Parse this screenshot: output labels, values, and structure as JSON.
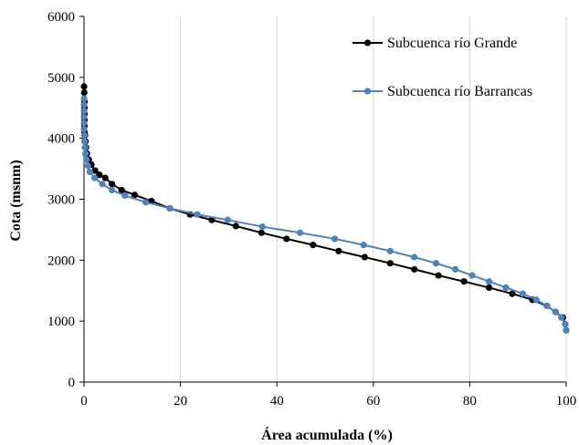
{
  "chart_data": {
    "type": "line",
    "xlabel": "Área acumulada  (%)",
    "ylabel": "Cota (msnm)",
    "xlim": [
      0,
      100
    ],
    "ylim": [
      0,
      6000
    ],
    "x_ticks": [
      "0",
      "20",
      "40",
      "60",
      "80",
      "100"
    ],
    "y_ticks": [
      "0",
      "1000",
      "2000",
      "3000",
      "4000",
      "5000",
      "6000"
    ],
    "grid": "vertical",
    "legend_position": "top-right",
    "series": [
      {
        "name": "Subcuenca río Grande",
        "color": "#000000",
        "points": [
          [
            0.0,
            4850
          ],
          [
            0.05,
            4750
          ],
          [
            0.1,
            4600
          ],
          [
            0.1,
            4500
          ],
          [
            0.1,
            4400
          ],
          [
            0.1,
            4300
          ],
          [
            0.1,
            4200
          ],
          [
            0.1,
            4100
          ],
          [
            0.2,
            4050
          ],
          [
            0.3,
            3950
          ],
          [
            0.4,
            3850
          ],
          [
            0.6,
            3750
          ],
          [
            1.0,
            3650
          ],
          [
            1.5,
            3570
          ],
          [
            2.3,
            3470
          ],
          [
            3.2,
            3400
          ],
          [
            4.4,
            3350
          ],
          [
            5.8,
            3250
          ],
          [
            7.8,
            3150
          ],
          [
            10.5,
            3070
          ],
          [
            14.0,
            2970
          ],
          [
            17.8,
            2850
          ],
          [
            22.0,
            2750
          ],
          [
            26.5,
            2660
          ],
          [
            31.5,
            2560
          ],
          [
            36.8,
            2450
          ],
          [
            42.0,
            2350
          ],
          [
            47.5,
            2250
          ],
          [
            52.8,
            2150
          ],
          [
            58.2,
            2050
          ],
          [
            63.5,
            1950
          ],
          [
            68.5,
            1850
          ],
          [
            73.5,
            1750
          ],
          [
            78.8,
            1650
          ],
          [
            84.0,
            1550
          ],
          [
            88.8,
            1450
          ],
          [
            93.0,
            1350
          ],
          [
            96.0,
            1250
          ],
          [
            97.8,
            1150
          ],
          [
            99.3,
            1060
          ],
          [
            99.8,
            950
          ],
          [
            100.0,
            850
          ]
        ]
      },
      {
        "name": "Subcuenca río Barrancas",
        "color": "#4F81BD",
        "points": [
          [
            0.0,
            4650
          ],
          [
            0.0,
            4550
          ],
          [
            0.0,
            4450
          ],
          [
            0.0,
            4350
          ],
          [
            0.0,
            4250
          ],
          [
            0.0,
            4150
          ],
          [
            0.05,
            4050
          ],
          [
            0.1,
            3950
          ],
          [
            0.2,
            3850
          ],
          [
            0.3,
            3750
          ],
          [
            0.5,
            3650
          ],
          [
            0.8,
            3550
          ],
          [
            1.2,
            3450
          ],
          [
            2.2,
            3350
          ],
          [
            3.8,
            3250
          ],
          [
            5.8,
            3150
          ],
          [
            8.5,
            3060
          ],
          [
            12.8,
            2950
          ],
          [
            17.8,
            2850
          ],
          [
            23.5,
            2750
          ],
          [
            29.8,
            2660
          ],
          [
            37.0,
            2550
          ],
          [
            44.8,
            2450
          ],
          [
            52.0,
            2350
          ],
          [
            58.0,
            2250
          ],
          [
            63.5,
            2150
          ],
          [
            68.5,
            2050
          ],
          [
            73.0,
            1950
          ],
          [
            77.0,
            1850
          ],
          [
            80.5,
            1750
          ],
          [
            84.0,
            1650
          ],
          [
            87.5,
            1550
          ],
          [
            91.0,
            1450
          ],
          [
            93.8,
            1350
          ],
          [
            96.0,
            1250
          ],
          [
            97.8,
            1150
          ],
          [
            99.0,
            1060
          ],
          [
            99.8,
            950
          ],
          [
            100.0,
            850
          ]
        ]
      }
    ]
  }
}
